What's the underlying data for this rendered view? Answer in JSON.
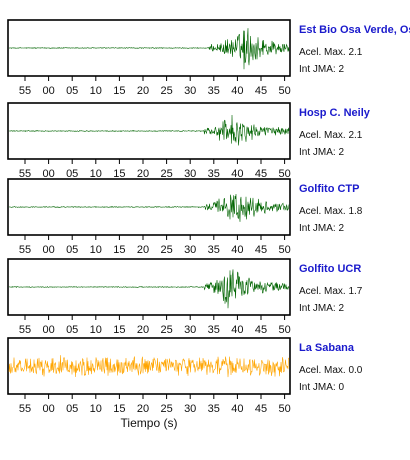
{
  "chart_data": {
    "type": "line",
    "xlabel": "Tiempo (s)",
    "tick_labels": [
      "55",
      "00",
      "05",
      "10",
      "15",
      "20",
      "25",
      "30",
      "35",
      "40",
      "45",
      "50"
    ],
    "series": [
      {
        "name": "Est Bio Osa Verde, Osa",
        "color": "#006400",
        "accel_label": "Acel. Max.",
        "accel_value": "2.1",
        "intensity_label": "Int JMA:",
        "intensity_value": "2",
        "onset_tick": 34,
        "peak_tick": 41.5,
        "noise_level": 0.02,
        "amplitude": 1.0
      },
      {
        "name": "Hosp C. Neily",
        "color": "#006400",
        "accel_label": "Acel. Max.",
        "accel_value": "2.1",
        "intensity_label": "Int JMA:",
        "intensity_value": "2",
        "onset_tick": 33,
        "peak_tick": 38.5,
        "noise_level": 0.02,
        "amplitude": 0.85
      },
      {
        "name": "Golfito CTP",
        "color": "#006400",
        "accel_label": "Acel. Max.",
        "accel_value": "1.8",
        "intensity_label": "Int JMA:",
        "intensity_value": "2",
        "onset_tick": 33,
        "peak_tick": 39,
        "noise_level": 0.02,
        "amplitude": 0.95
      },
      {
        "name": "Golfito UCR",
        "color": "#006400",
        "accel_label": "Acel. Max.",
        "accel_value": "1.7",
        "intensity_label": "Int JMA:",
        "intensity_value": "2",
        "onset_tick": 33,
        "peak_tick": 38,
        "noise_level": 0.02,
        "amplitude": 1.0
      },
      {
        "name": "La Sabana",
        "color": "#ffa500",
        "accel_label": "Acel. Max.",
        "accel_value": "0.0",
        "intensity_label": "Int JMA:",
        "intensity_value": "0",
        "onset_tick": null,
        "peak_tick": null,
        "noise_level": 0.45,
        "amplitude": 0.0
      }
    ]
  }
}
